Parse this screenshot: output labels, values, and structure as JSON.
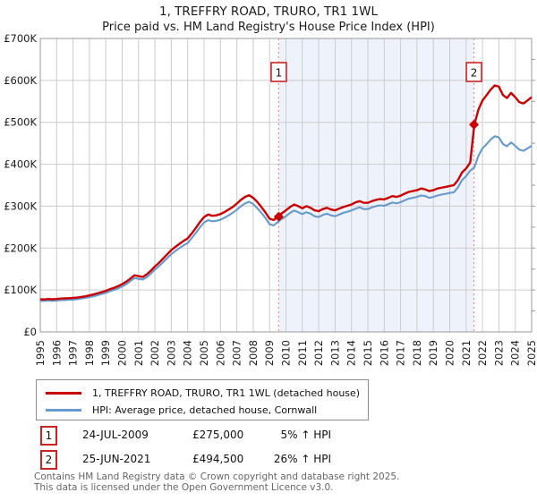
{
  "title": "1, TREFFRY ROAD, TRURO, TR1 1WL",
  "subtitle": "Price paid vs. HM Land Registry's House Price Index (HPI)",
  "colors": {
    "property_line": "#cc0000",
    "hpi_line": "#6699cc",
    "grid": "#cccccc",
    "plot_border": "#999999",
    "shaded_band": "#eef2fb",
    "sale_dotted_line": "#f28b8b",
    "marker_box_border": "#cc2222",
    "footer_text": "#666666"
  },
  "chart_data": {
    "type": "line",
    "title": "1, TREFFRY ROAD, TRURO, TR1 1WL",
    "subtitle": "Price paid vs. HM Land Registry's House Price Index (HPI)",
    "x_axis": {
      "min": 1995,
      "max": 2025,
      "tick_years": [
        1995,
        1996,
        1997,
        1998,
        1999,
        2000,
        2001,
        2002,
        2003,
        2004,
        2005,
        2006,
        2007,
        2008,
        2009,
        2010,
        2011,
        2012,
        2013,
        2014,
        2015,
        2016,
        2017,
        2018,
        2019,
        2020,
        2021,
        2022,
        2023,
        2024,
        2025
      ]
    },
    "y_axis": {
      "min": 0,
      "max": 700,
      "unit": "GBP thousands",
      "tick_labels": [
        "£0",
        "£100K",
        "£200K",
        "£300K",
        "£400K",
        "£500K",
        "£600K",
        "£700K"
      ]
    },
    "grid": true,
    "legend_position": "below",
    "shaded_region": {
      "from_year": 2009.56,
      "to_year": 2021.48
    },
    "series": [
      {
        "name": "1, TREFFRY ROAD, TRURO, TR1 1WL (detached house)",
        "color": "#cc0000",
        "start_year": 1995,
        "step_years": 0.25,
        "values_gbp_k": [
          78,
          77.5,
          78.5,
          78,
          78.5,
          79.5,
          80,
          80.5,
          81,
          82,
          83.5,
          85,
          87,
          89.5,
          92,
          95,
          98,
          102,
          105,
          109,
          114,
          120,
          127,
          135,
          133,
          131,
          137,
          146,
          156,
          165,
          175,
          185,
          195,
          203,
          210,
          217,
          223,
          235,
          248,
          262,
          274,
          280,
          277,
          278,
          281,
          286,
          292,
          298,
          306,
          315,
          322,
          326,
          320,
          310,
          298,
          285,
          270,
          267,
          275,
          283,
          290,
          298,
          304,
          300,
          295,
          300,
          296,
          290,
          288,
          293,
          296,
          292,
          290,
          294,
          298,
          301,
          304,
          309,
          312,
          308,
          308,
          312,
          315,
          317,
          316,
          320,
          324,
          322,
          325,
          330,
          334,
          336,
          338,
          342,
          340,
          336,
          338,
          342,
          344,
          346,
          348,
          350,
          362,
          380,
          390,
          404,
          494.5,
          530,
          552,
          565,
          578,
          588,
          585,
          565,
          558,
          570,
          560,
          548,
          545,
          552,
          560
        ]
      },
      {
        "name": "HPI: Average price, detached house, Cornwall",
        "color": "#6699cc",
        "start_year": 1995,
        "step_years": 0.25,
        "values_gbp_k": [
          74,
          74,
          75,
          74,
          75,
          76,
          76,
          77,
          77,
          78,
          79.5,
          81,
          83,
          85,
          87.5,
          90.5,
          93,
          97,
          100,
          104,
          108.5,
          114,
          121,
          128.5,
          126.5,
          125,
          130.5,
          139,
          148.5,
          157,
          166.5,
          176,
          185.5,
          193,
          200,
          206.5,
          212,
          224,
          236,
          249.5,
          261,
          266.5,
          264,
          265,
          267.5,
          272.5,
          278,
          284,
          291.5,
          300,
          306.5,
          310.5,
          305,
          295,
          284,
          271.5,
          257,
          254,
          262,
          269.5,
          276,
          284,
          289.5,
          285.5,
          281,
          285.5,
          282,
          276,
          274,
          279,
          282,
          278,
          276,
          280,
          284,
          286.5,
          289.5,
          294,
          297,
          293,
          293,
          297,
          300,
          302,
          301,
          305,
          308.5,
          306.5,
          309.5,
          314,
          318,
          320,
          322,
          325.5,
          324,
          320,
          322,
          325.5,
          327.5,
          329.5,
          331.5,
          333,
          344.5,
          362,
          371.5,
          384.5,
          392.5,
          420,
          438,
          448,
          459,
          467,
          464,
          448,
          443,
          452,
          444,
          435,
          432,
          438,
          444
        ]
      }
    ],
    "sales": [
      {
        "label": "1",
        "date": "24-JUL-2009",
        "price": "£275,000",
        "hpi_delta": "5% ↑ HPI",
        "x_year": 2009.56,
        "value_gbp_k": 275
      },
      {
        "label": "2",
        "date": "25-JUN-2021",
        "price": "£494,500",
        "hpi_delta": "26% ↑ HPI",
        "x_year": 2021.48,
        "value_gbp_k": 494.5
      }
    ]
  },
  "footer": {
    "line1": "Contains HM Land Registry data © Crown copyright and database right 2025.",
    "line2": "This data is licensed under the Open Government Licence v3.0."
  }
}
